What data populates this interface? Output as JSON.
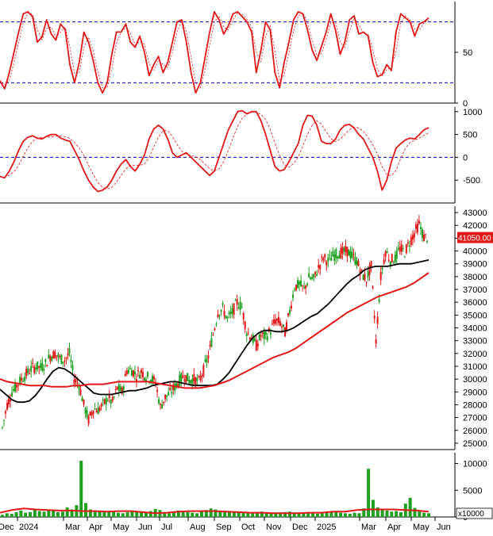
{
  "colors": {
    "up": "#20a020",
    "down": "#e01818",
    "rsi_line": "#e01818",
    "macd_line": "#e01818",
    "ma_short": "#000000",
    "ma_long": "#e01818",
    "volume_bar": "#20a020",
    "volume_ma": "#e01818",
    "last_price_bg": "#e01818",
    "last_price_fg": "#ffffff",
    "frame": "#000000",
    "guide": "#0000cc"
  },
  "x_axis": {
    "labels": [
      "Dec",
      "2024",
      "Mar",
      "Apr",
      "May",
      "Jun",
      "Jul",
      "Aug",
      "Sep",
      "Oct",
      "Nov",
      "Dec",
      "2025",
      "Mar",
      "Apr",
      "May",
      "Jun"
    ]
  },
  "chart_data": [
    {
      "type": "line",
      "panel": "rsi",
      "ylim": [
        0,
        100
      ],
      "y_ticks": [
        0,
        50
      ],
      "guides": [
        20,
        80
      ],
      "values": [
        22,
        14,
        30,
        50,
        70,
        88,
        90,
        85,
        60,
        65,
        82,
        68,
        62,
        78,
        72,
        38,
        20,
        40,
        70,
        60,
        42,
        20,
        10,
        20,
        48,
        70,
        70,
        78,
        60,
        55,
        66,
        50,
        27,
        38,
        46,
        30,
        40,
        60,
        80,
        82,
        60,
        30,
        10,
        20,
        45,
        70,
        90,
        82,
        68,
        76,
        88,
        90,
        85,
        80,
        70,
        30,
        52,
        80,
        72,
        30,
        15,
        40,
        60,
        82,
        90,
        88,
        72,
        52,
        42,
        56,
        70,
        88,
        72,
        48,
        60,
        82,
        86,
        68,
        70,
        66,
        40,
        26,
        28,
        38,
        32,
        70,
        88,
        84,
        80,
        66,
        78,
        80,
        84
      ]
    },
    {
      "type": "line",
      "panel": "macd",
      "ylim": [
        -1000,
        1100
      ],
      "y_ticks": [
        -500,
        0,
        500,
        1000
      ],
      "guides": [
        0
      ],
      "values": [
        -420,
        -450,
        -300,
        -100,
        150,
        350,
        440,
        470,
        420,
        400,
        460,
        500,
        500,
        420,
        380,
        350,
        150,
        -50,
        -300,
        -500,
        -650,
        -750,
        -720,
        -650,
        -500,
        -300,
        -150,
        -50,
        -200,
        -300,
        -150,
        50,
        400,
        620,
        700,
        620,
        400,
        100,
        0,
        50,
        100,
        0,
        -100,
        -200,
        -300,
        -400,
        -300,
        0,
        300,
        600,
        800,
        1000,
        1020,
        950,
        1000,
        1000,
        800,
        500,
        150,
        -200,
        -300,
        -270,
        -100,
        100,
        300,
        700,
        920,
        900,
        700,
        350,
        300,
        300,
        400,
        600,
        700,
        720,
        640,
        500,
        400,
        200,
        0,
        -300,
        -720,
        -500,
        -100,
        200,
        300,
        380,
        420,
        400,
        500,
        600,
        650
      ]
    },
    {
      "type": "line",
      "panel": "price",
      "ylim": [
        24500,
        43500
      ],
      "y_ticks": [
        25000,
        26000,
        27000,
        28000,
        29000,
        30000,
        31000,
        32000,
        33000,
        34000,
        35000,
        36000,
        37000,
        38000,
        39000,
        40000,
        41000,
        42000,
        43000
      ],
      "last_price": 41050,
      "last_price_label": "41050.00",
      "series": [
        {
          "role": "close",
          "values": [
            26200,
            28000,
            29000,
            29500,
            30000,
            30400,
            30800,
            31000,
            30900,
            31200,
            31800,
            32000,
            31600,
            31500,
            32000,
            30000,
            29600,
            28000,
            26800,
            27700,
            27600,
            28000,
            28500,
            28200,
            29300,
            29000,
            30700,
            30700,
            30300,
            30600,
            30200,
            30100,
            29700,
            27800,
            28600,
            28900,
            29400,
            29900,
            30300,
            29900,
            30000,
            29800,
            30700,
            31800,
            33500,
            35200,
            35500,
            34700,
            35200,
            36000,
            35600,
            33700,
            33300,
            32600,
            33400,
            33300,
            33800,
            34600,
            34400,
            33600,
            35300,
            37200,
            37400,
            37000,
            37900,
            37800,
            38700,
            39500,
            39200,
            39600,
            39800,
            39900,
            40000,
            39600,
            39200,
            38200,
            37800,
            38800,
            33000,
            38000,
            40000,
            39300,
            39400,
            40200,
            39900,
            40700,
            41400,
            42100,
            41050
          ]
        },
        {
          "role": "ma_short",
          "values": [
            29200,
            28800,
            28400,
            28200,
            28200,
            28300,
            28700,
            29300,
            30000,
            30600,
            30900,
            30800,
            30500,
            30100,
            29700,
            29300,
            28900,
            28800,
            28800,
            28800,
            28900,
            29000,
            29100,
            29100,
            29200,
            29300,
            29500,
            29600,
            29700,
            29800,
            29800,
            29700,
            29600,
            29500,
            29500,
            29500,
            29500,
            29600,
            30000,
            30500,
            31200,
            31900,
            32600,
            33200,
            33600,
            33800,
            33800,
            33700,
            33700,
            33800,
            34000,
            34300,
            34600,
            34900,
            35100,
            35500,
            35900,
            36400,
            36900,
            37400,
            37800,
            38100,
            38500,
            38700,
            38800,
            38800,
            38800,
            38900,
            39000,
            39000,
            39000,
            39100,
            39200,
            39300
          ]
        },
        {
          "role": "ma_long",
          "values": [
            30000,
            29800,
            29700,
            29600,
            29500,
            29500,
            29500,
            29400,
            29400,
            29400,
            29500,
            29500,
            29600,
            29600,
            29600,
            29700,
            29800,
            29800,
            29800,
            29800,
            29800,
            29700,
            29600,
            29500,
            29400,
            29300,
            29300,
            29300,
            29400,
            29500,
            29700,
            29900,
            30200,
            30500,
            30800,
            31100,
            31400,
            31700,
            31900,
            32100,
            32400,
            32800,
            33200,
            33600,
            34000,
            34400,
            34800,
            35200,
            35500,
            35800,
            36100,
            36400,
            36600,
            36800,
            37000,
            37200,
            37500,
            37900,
            38300
          ]
        }
      ]
    },
    {
      "type": "bar",
      "panel": "volume",
      "ylim": [
        0,
        12000
      ],
      "y_ticks": [
        0,
        5000,
        10000
      ],
      "unit_label": "x10000",
      "values": [
        400,
        700,
        600,
        900,
        1200,
        800,
        900,
        1500,
        1100,
        1000,
        1300,
        1200,
        900,
        1000,
        1800,
        1400,
        2200,
        10500,
        2600,
        1400,
        1100,
        1200,
        900,
        1000,
        1100,
        800,
        700,
        900,
        1200,
        1100,
        1000,
        800,
        1100,
        1500,
        1300,
        900,
        700,
        800,
        1200,
        1000,
        900,
        800,
        700,
        1100,
        1300,
        1600,
        1400,
        1200,
        1000,
        1100,
        900,
        800,
        900,
        700,
        800,
        900,
        1000,
        900,
        800,
        700,
        800,
        900,
        1000,
        800,
        700,
        800,
        900,
        700,
        600,
        800,
        900,
        1000,
        900,
        800,
        700,
        600,
        800,
        700,
        1600,
        9000,
        3200,
        1800,
        1500,
        1200,
        1000,
        1100,
        900,
        2500,
        3600,
        1700,
        1200,
        800,
        700
      ],
      "ma": [
        800,
        1300,
        1600,
        1400,
        1300,
        1200,
        1200,
        1100,
        1100,
        1000,
        1100,
        1100,
        900,
        700,
        800,
        1000,
        1100,
        1100,
        1100,
        1000,
        900,
        800,
        800,
        700,
        700,
        700,
        800,
        800,
        1000,
        1000,
        1300,
        1400,
        1400,
        1400,
        1300,
        1200,
        1000
      ]
    }
  ]
}
